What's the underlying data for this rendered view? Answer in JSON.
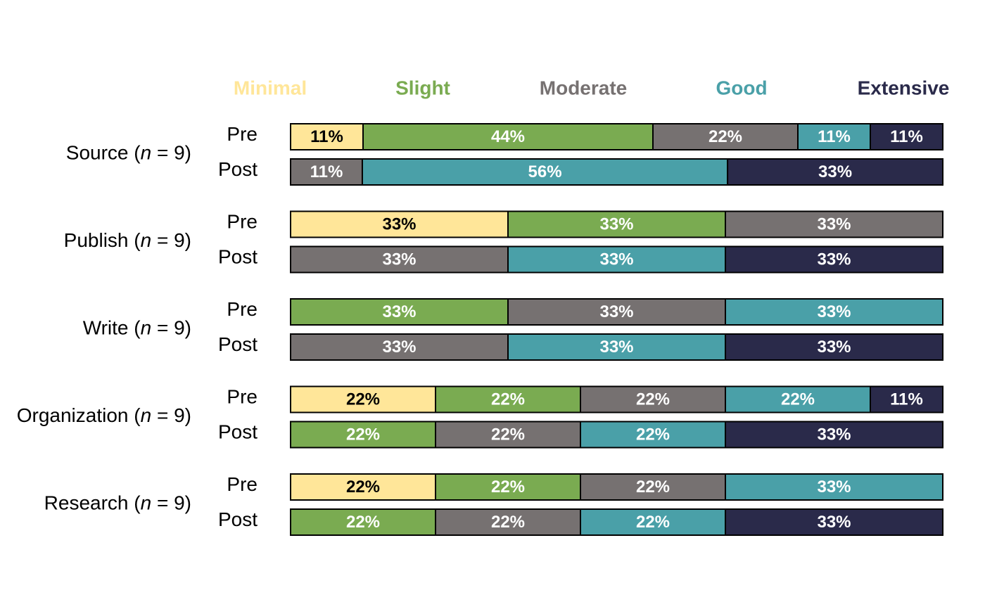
{
  "chart_data": {
    "type": "bar",
    "orientation": "horizontal",
    "stacked": "100%",
    "legend_position": "top",
    "categories_legend": [
      {
        "name": "Minimal",
        "color": "#FFE699"
      },
      {
        "name": "Slight",
        "color": "#7AAB51"
      },
      {
        "name": "Moderate",
        "color": "#767171"
      },
      {
        "name": "Good",
        "color": "#4AA0A8"
      },
      {
        "name": "Extensive",
        "color": "#2A2A4A"
      }
    ],
    "groups": [
      {
        "name": "Source",
        "n_label": "n",
        "n_value": "= 9)",
        "rows": [
          {
            "label": "Pre",
            "values": [
              11,
              44,
              22,
              11,
              11
            ],
            "value_labels": [
              "11%",
              "44%",
              "22%",
              "11%",
              "11%"
            ]
          },
          {
            "label": "Post",
            "values": [
              0,
              0,
              11,
              56,
              33
            ],
            "value_labels": [
              "",
              "",
              "11%",
              "56%",
              "33%"
            ]
          }
        ]
      },
      {
        "name": "Publish",
        "n_label": "n",
        "n_value": "= 9)",
        "rows": [
          {
            "label": "Pre",
            "values": [
              33,
              33,
              33,
              0,
              0
            ],
            "value_labels": [
              "33%",
              "33%",
              "33%",
              "",
              ""
            ]
          },
          {
            "label": "Post",
            "values": [
              0,
              0,
              33,
              33,
              33
            ],
            "value_labels": [
              "",
              "",
              "33%",
              "33%",
              "33%"
            ]
          }
        ]
      },
      {
        "name": "Write",
        "n_label": "n",
        "n_value": "= 9)",
        "rows": [
          {
            "label": "Pre",
            "values": [
              0,
              33,
              33,
              33,
              0
            ],
            "value_labels": [
              "",
              "33%",
              "33%",
              "33%",
              ""
            ]
          },
          {
            "label": "Post",
            "values": [
              0,
              0,
              33,
              33,
              33
            ],
            "value_labels": [
              "",
              "",
              "33%",
              "33%",
              "33%"
            ]
          }
        ]
      },
      {
        "name": "Organization",
        "n_label": "n",
        "n_value": "= 9)",
        "rows": [
          {
            "label": "Pre",
            "values": [
              22,
              22,
              22,
              22,
              11
            ],
            "value_labels": [
              "22%",
              "22%",
              "22%",
              "22%",
              "11%"
            ]
          },
          {
            "label": "Post",
            "values": [
              0,
              22,
              22,
              22,
              33
            ],
            "value_labels": [
              "",
              "22%",
              "22%",
              "22%",
              "33%"
            ]
          }
        ]
      },
      {
        "name": "Research",
        "n_label": "n",
        "n_value": "= 9)",
        "rows": [
          {
            "label": "Pre",
            "values": [
              22,
              22,
              22,
              33,
              0
            ],
            "value_labels": [
              "22%",
              "22%",
              "22%",
              "33%",
              ""
            ]
          },
          {
            "label": "Post",
            "values": [
              0,
              22,
              22,
              22,
              33
            ],
            "value_labels": [
              "",
              "22%",
              "22%",
              "22%",
              "33%"
            ]
          }
        ]
      }
    ],
    "xlim": [
      0,
      100
    ],
    "grid": false,
    "label_text_colors": {
      "light_fill": "#000000",
      "dark_fill": "#FFFFFF"
    }
  }
}
